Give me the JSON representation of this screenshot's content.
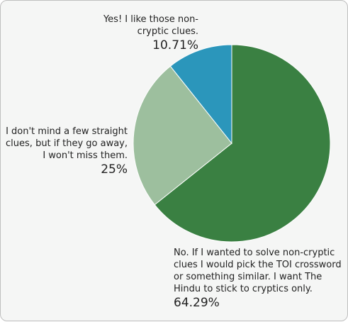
{
  "chart_data": {
    "type": "pie",
    "slices": [
      {
        "label": "No. If I wanted to solve non-cryptic clues I would pick the TOI crossword or something similar. I want The Hindu to stick to cryptics only.",
        "value": 64.29,
        "display": "64.29%",
        "color": "#3a8042"
      },
      {
        "label": "I don't mind a few straight clues, but if they go away, I won't miss them.",
        "value": 25,
        "display": "25%",
        "color": "#9dbf9e"
      },
      {
        "label": "Yes! I like those non-cryptic clues.",
        "value": 10.71,
        "display": "10.71%",
        "color": "#2b96bb"
      }
    ]
  }
}
